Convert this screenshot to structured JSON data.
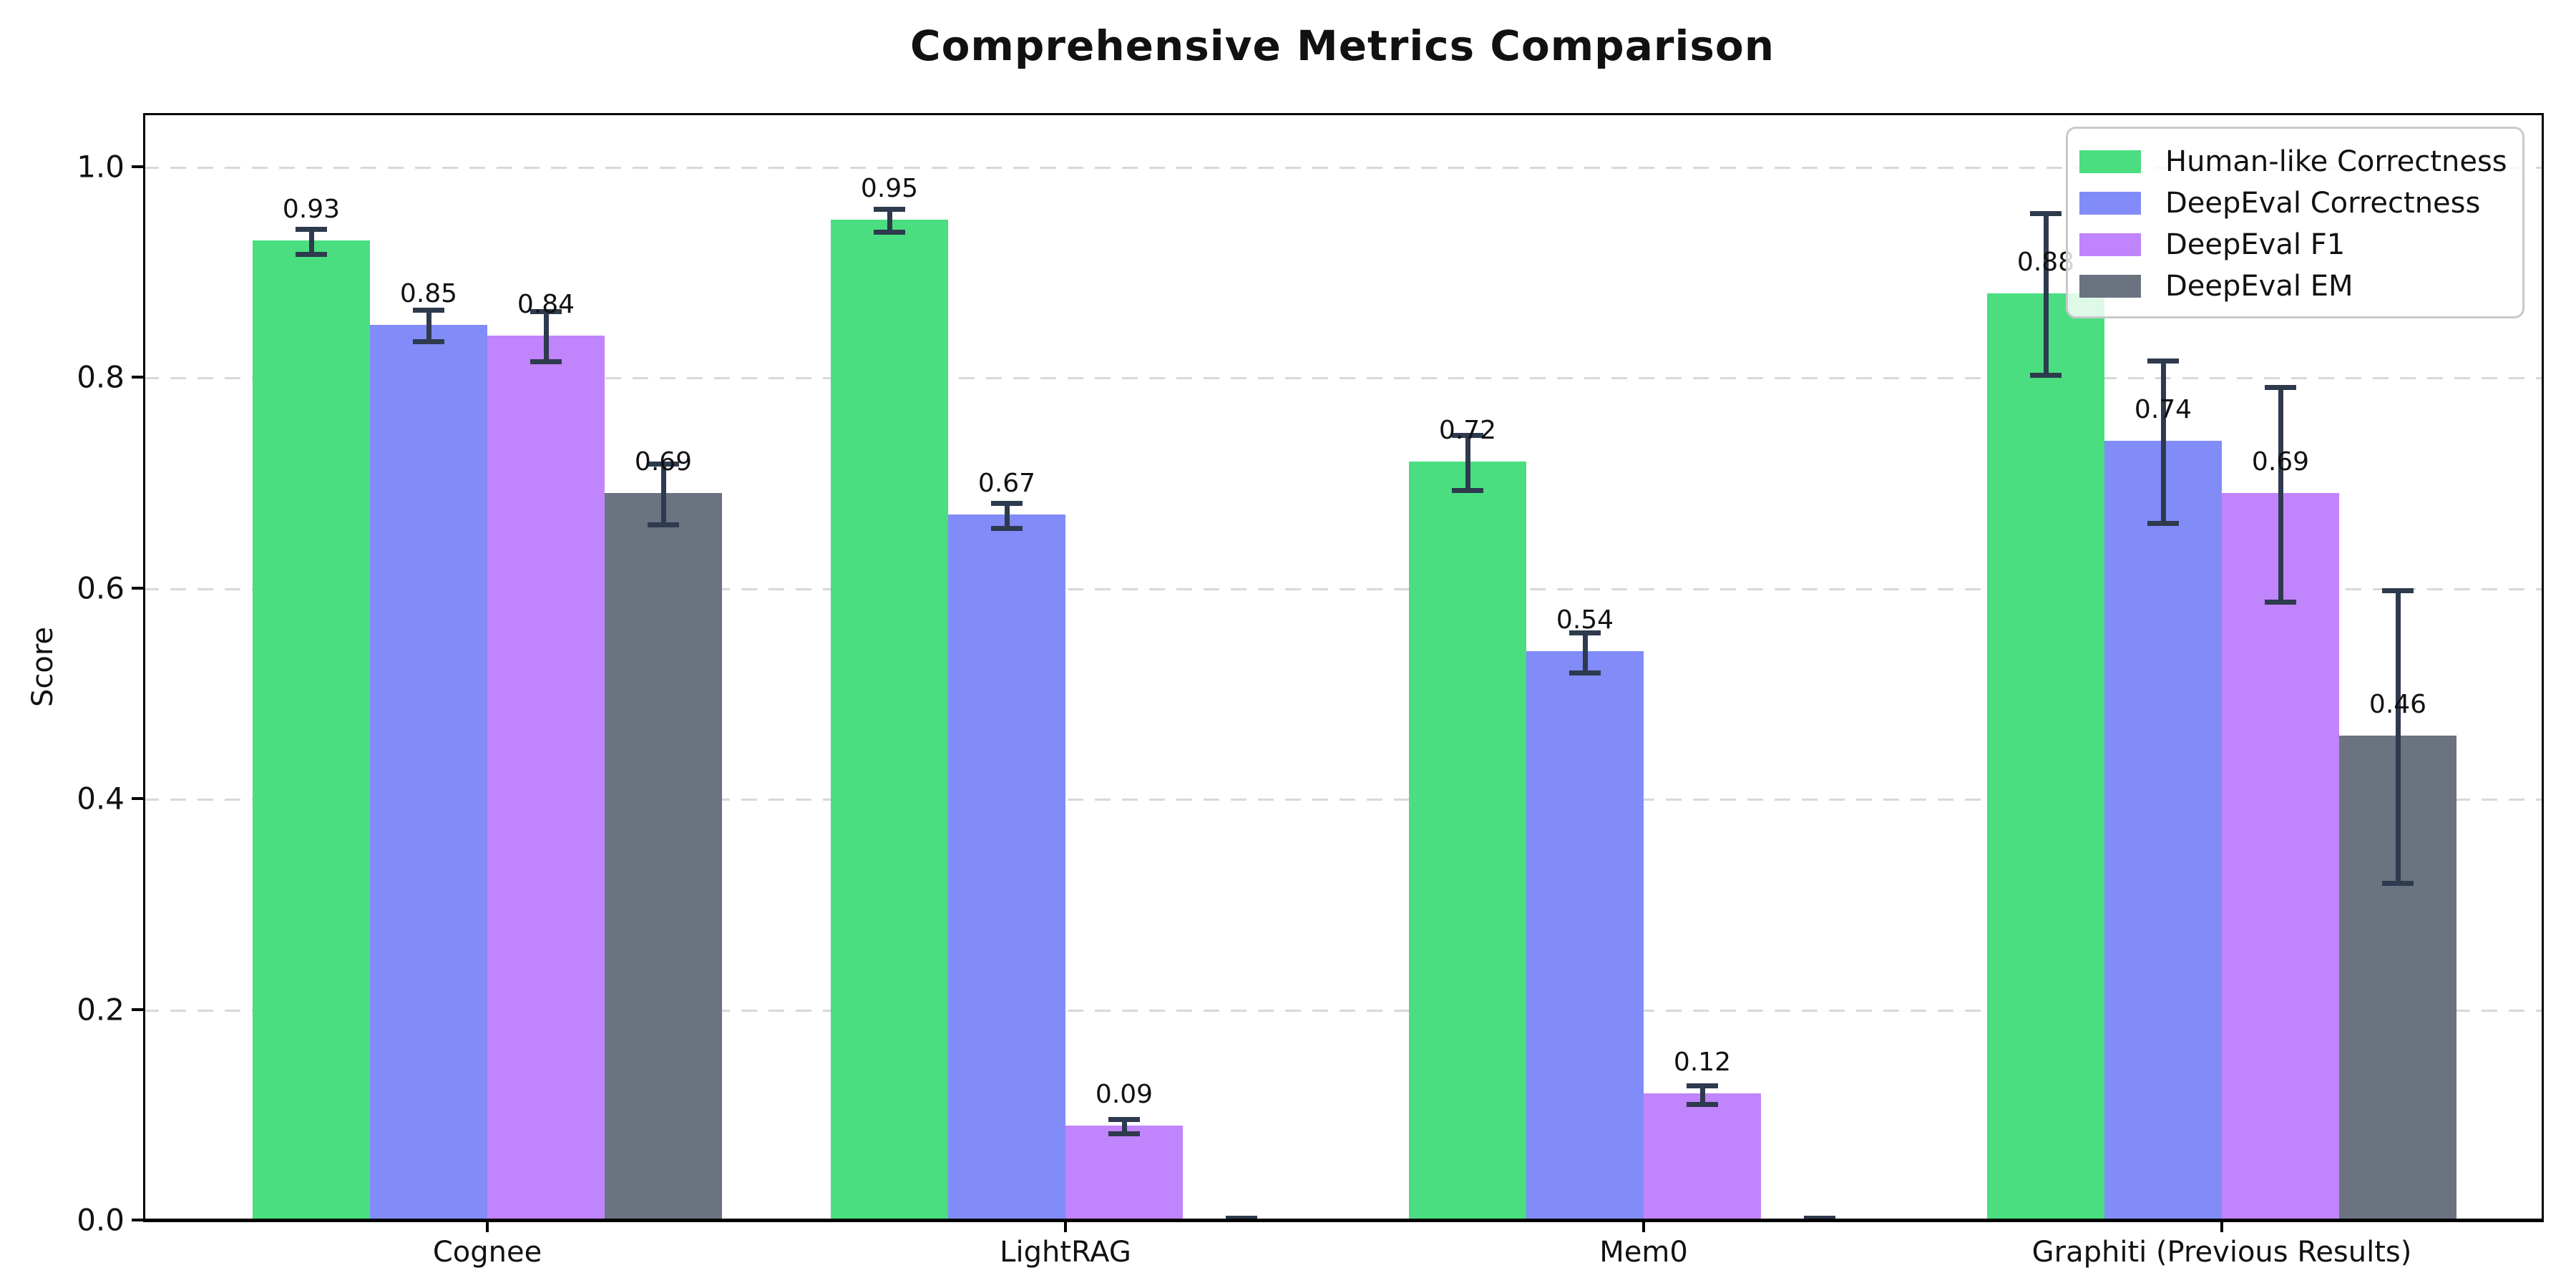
{
  "title": "Comprehensive Metrics Comparison",
  "chart_data": {
    "type": "bar",
    "title": "Comprehensive Metrics Comparison",
    "xlabel": "",
    "ylabel": "Score",
    "categories": [
      "Cognee",
      "LightRAG",
      "Mem0",
      "Graphiti (Previous Results)"
    ],
    "series": [
      {
        "name": "Human-like Correctness",
        "color": "#4ade80",
        "values": [
          0.93,
          0.95,
          0.72,
          0.88
        ],
        "errors": [
          0.013,
          0.012,
          0.027,
          0.078
        ],
        "labels": [
          "0.93",
          "0.95",
          "0.72",
          "0.88"
        ]
      },
      {
        "name": "DeepEval Correctness",
        "color": "#818cf8",
        "values": [
          0.85,
          0.67,
          0.54,
          0.74
        ],
        "errors": [
          0.016,
          0.013,
          0.02,
          0.078
        ],
        "labels": [
          "0.85",
          "0.67",
          "0.54",
          "0.74"
        ]
      },
      {
        "name": "DeepEval F1",
        "color": "#c084fc",
        "values": [
          0.84,
          0.09,
          0.12,
          0.69
        ],
        "errors": [
          0.025,
          0.008,
          0.01,
          0.103
        ],
        "labels": [
          "0.84",
          "0.09",
          "0.12",
          "0.69"
        ]
      },
      {
        "name": "DeepEval EM",
        "color": "#6b7280",
        "values": [
          0.69,
          0.0,
          0.0,
          0.46
        ],
        "errors": [
          0.03,
          0.004,
          0.004,
          0.14
        ],
        "labels": [
          "0.69",
          "",
          "",
          "0.46"
        ]
      }
    ],
    "yticks": [
      0.0,
      0.2,
      0.4,
      0.6,
      0.8,
      1.0
    ],
    "ytick_labels": [
      "0.0",
      "0.2",
      "0.4",
      "0.6",
      "0.8",
      "1.0"
    ],
    "ylim": [
      0,
      1.05
    ],
    "grid": "horizontal dashed at yticks",
    "legend_position": "upper right",
    "errorbar_color": "#2e3a4d"
  }
}
